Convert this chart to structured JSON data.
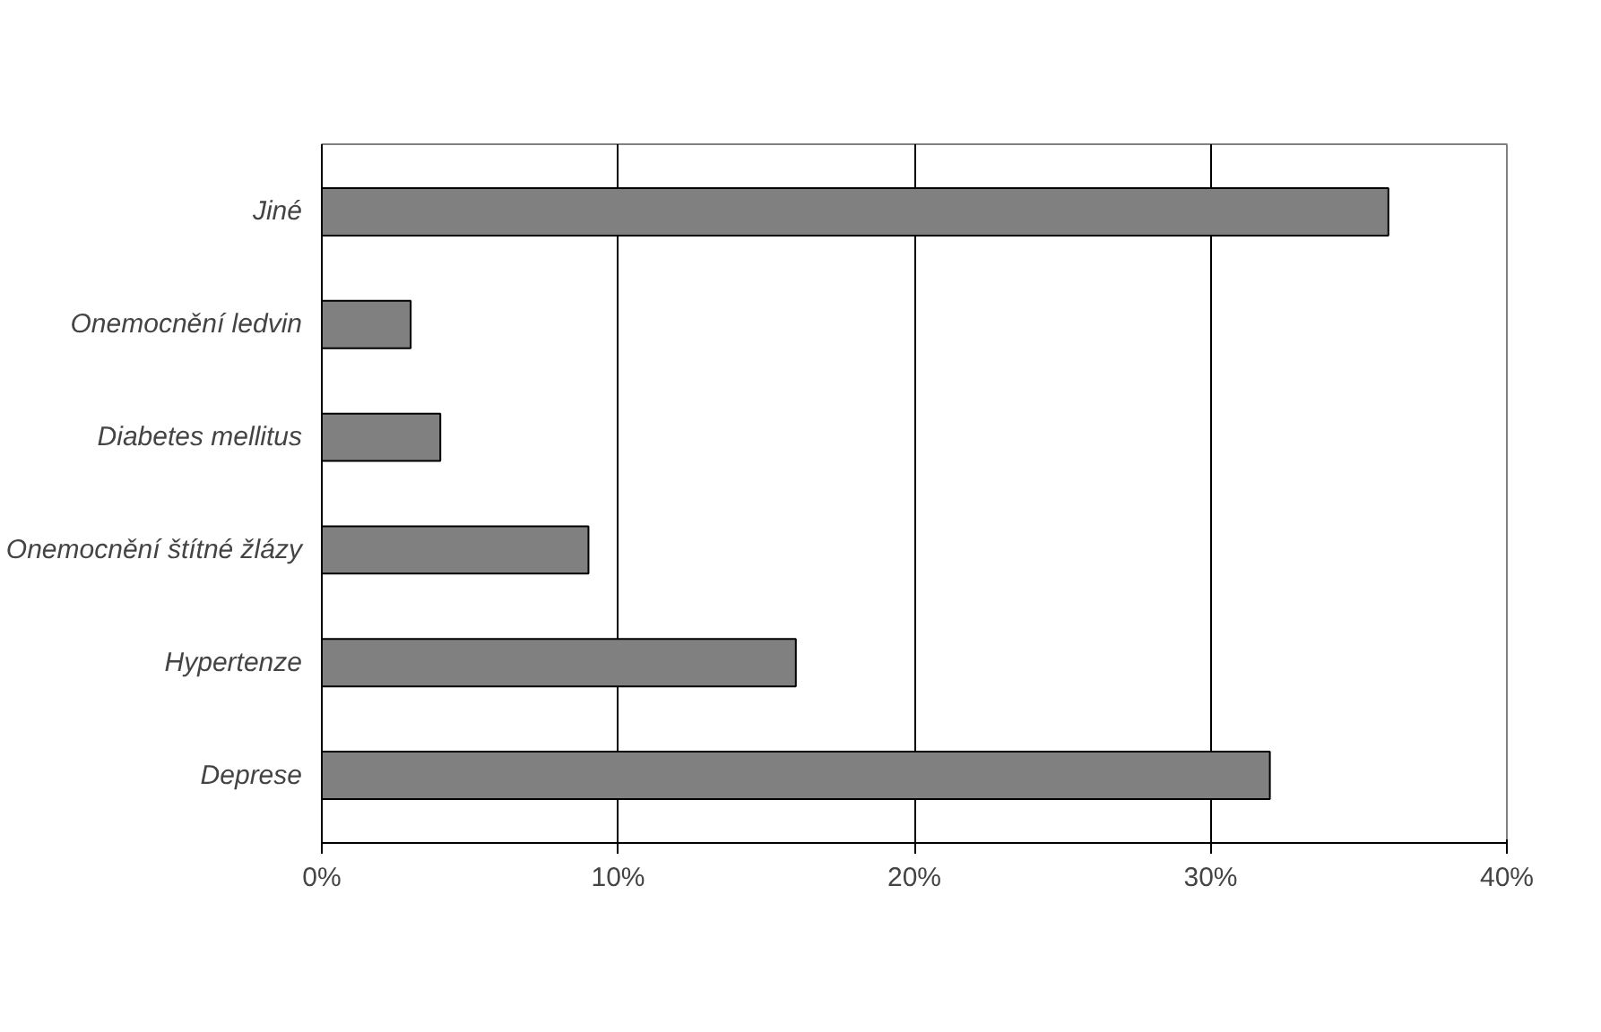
{
  "chart_data": {
    "type": "bar",
    "orientation": "horizontal",
    "categories": [
      "Jiné",
      "Onemocnění ledvin",
      "Diabetes mellitus",
      "Onemocnění štítné žlázy",
      "Hypertenze",
      "Deprese"
    ],
    "values": [
      36,
      3,
      4,
      9,
      16,
      32
    ],
    "color": "#808080",
    "xlim": [
      0,
      40
    ],
    "xticks": [
      {
        "value": 0,
        "label": "0%"
      },
      {
        "value": 10,
        "label": "10%"
      },
      {
        "value": 20,
        "label": "20%"
      },
      {
        "value": 30,
        "label": "30%"
      },
      {
        "value": 40,
        "label": "40%"
      }
    ],
    "grid": "x"
  }
}
